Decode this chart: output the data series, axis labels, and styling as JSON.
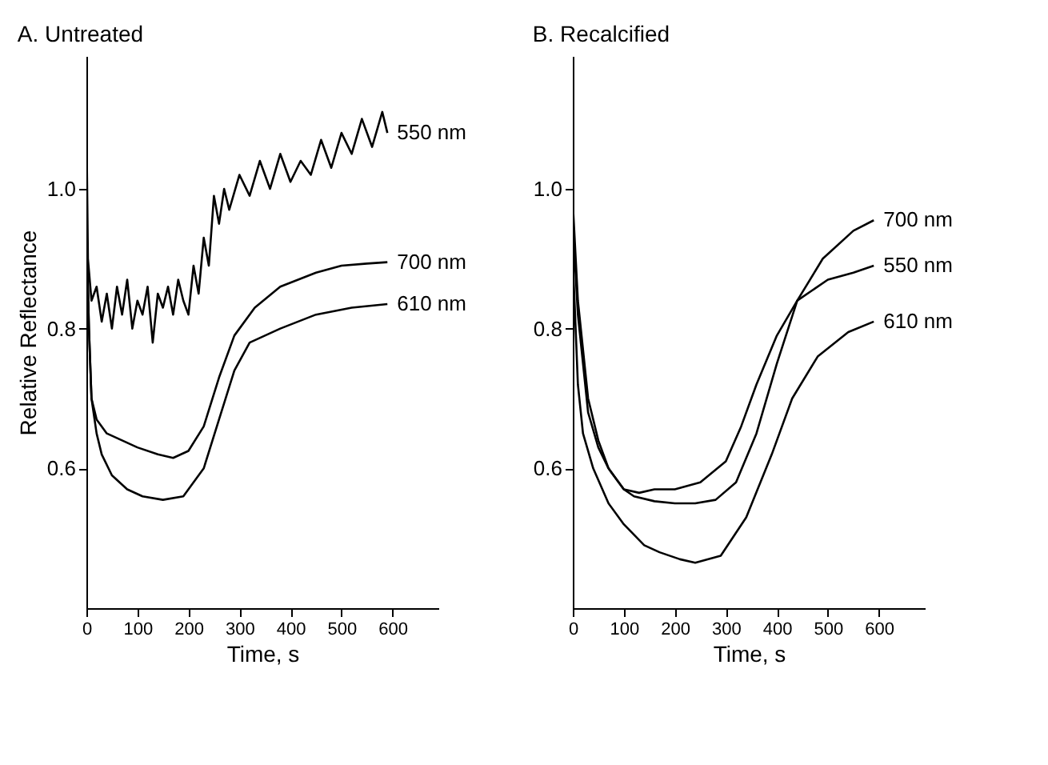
{
  "chart_data": [
    {
      "type": "line",
      "title": "A. Untreated",
      "xlabel": "Time, s",
      "ylabel": "Relative Reflectance",
      "xlim": [
        0,
        690
      ],
      "ylim": [
        0.4,
        1.19
      ],
      "xticks": [
        0,
        100,
        200,
        300,
        400,
        500,
        600
      ],
      "yticks": [
        {
          "value": 0.6,
          "label": "0.6"
        },
        {
          "value": 0.8,
          "label": "0.8"
        },
        {
          "value": 1.0,
          "label": "1.0"
        }
      ],
      "grid": false,
      "legend": false,
      "series": [
        {
          "name": "550 nm",
          "color": "#000000",
          "x": [
            0,
            3,
            10,
            20,
            30,
            40,
            50,
            60,
            70,
            80,
            90,
            100,
            110,
            120,
            130,
            140,
            150,
            160,
            170,
            180,
            190,
            200,
            210,
            220,
            230,
            240,
            250,
            260,
            270,
            280,
            300,
            320,
            340,
            360,
            380,
            400,
            420,
            440,
            460,
            480,
            500,
            520,
            540,
            560,
            580,
            590
          ],
          "values": [
            1.1,
            0.9,
            0.84,
            0.86,
            0.81,
            0.85,
            0.8,
            0.86,
            0.82,
            0.87,
            0.8,
            0.84,
            0.82,
            0.86,
            0.78,
            0.85,
            0.83,
            0.86,
            0.82,
            0.87,
            0.84,
            0.82,
            0.89,
            0.85,
            0.93,
            0.89,
            0.99,
            0.95,
            1.0,
            0.97,
            1.02,
            0.99,
            1.04,
            1.0,
            1.05,
            1.01,
            1.04,
            1.02,
            1.07,
            1.03,
            1.08,
            1.05,
            1.1,
            1.06,
            1.11,
            1.08
          ]
        },
        {
          "name": "700 nm",
          "color": "#000000",
          "x": [
            0,
            5,
            10,
            20,
            40,
            70,
            100,
            140,
            170,
            200,
            230,
            260,
            290,
            330,
            380,
            450,
            500,
            550,
            590
          ],
          "values": [
            0.95,
            0.8,
            0.7,
            0.67,
            0.65,
            0.64,
            0.63,
            0.62,
            0.615,
            0.625,
            0.66,
            0.73,
            0.79,
            0.83,
            0.86,
            0.88,
            0.89,
            0.893,
            0.895
          ]
        },
        {
          "name": "610 nm",
          "color": "#000000",
          "x": [
            0,
            5,
            10,
            20,
            30,
            50,
            80,
            110,
            150,
            190,
            230,
            260,
            290,
            320,
            380,
            450,
            520,
            590
          ],
          "values": [
            0.95,
            0.8,
            0.7,
            0.65,
            0.62,
            0.59,
            0.57,
            0.56,
            0.555,
            0.56,
            0.6,
            0.67,
            0.74,
            0.78,
            0.8,
            0.82,
            0.83,
            0.835
          ]
        }
      ]
    },
    {
      "type": "line",
      "title": "B. Recalcified",
      "xlabel": "Time, s",
      "xlim": [
        0,
        690
      ],
      "ylim": [
        0.4,
        1.19
      ],
      "xticks": [
        0,
        100,
        200,
        300,
        400,
        500,
        600
      ],
      "yticks": [
        {
          "value": 0.6,
          "label": "0.6"
        },
        {
          "value": 0.8,
          "label": "0.8"
        },
        {
          "value": 1.0,
          "label": "1.0"
        }
      ],
      "grid": false,
      "legend": false,
      "series": [
        {
          "name": "700 nm",
          "color": "#000000",
          "x": [
            0,
            10,
            30,
            50,
            70,
            100,
            120,
            160,
            200,
            240,
            280,
            320,
            360,
            400,
            440,
            490,
            550,
            590
          ],
          "values": [
            0.95,
            0.82,
            0.68,
            0.63,
            0.6,
            0.57,
            0.56,
            0.553,
            0.55,
            0.55,
            0.555,
            0.58,
            0.65,
            0.75,
            0.84,
            0.9,
            0.94,
            0.955
          ]
        },
        {
          "name": "550 nm",
          "color": "#000000",
          "x": [
            0,
            10,
            30,
            50,
            70,
            100,
            130,
            160,
            200,
            250,
            300,
            330,
            360,
            400,
            440,
            500,
            550,
            590
          ],
          "values": [
            0.98,
            0.84,
            0.7,
            0.64,
            0.6,
            0.57,
            0.565,
            0.57,
            0.57,
            0.58,
            0.61,
            0.66,
            0.72,
            0.79,
            0.84,
            0.87,
            0.88,
            0.89
          ]
        },
        {
          "name": "610 nm",
          "color": "#000000",
          "x": [
            0,
            10,
            20,
            40,
            70,
            100,
            140,
            170,
            210,
            240,
            290,
            340,
            390,
            430,
            480,
            540,
            590
          ],
          "values": [
            0.9,
            0.72,
            0.65,
            0.6,
            0.55,
            0.52,
            0.49,
            0.48,
            0.47,
            0.465,
            0.475,
            0.53,
            0.62,
            0.7,
            0.76,
            0.795,
            0.81
          ]
        }
      ]
    }
  ]
}
